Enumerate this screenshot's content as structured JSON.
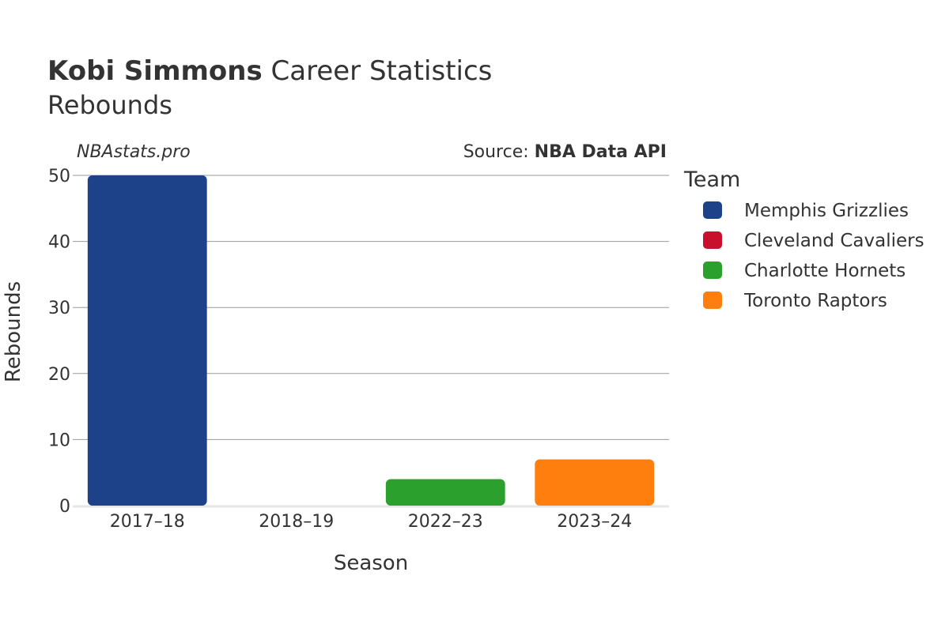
{
  "chart_data": {
    "type": "bar",
    "title_bold": "Kobi Simmons",
    "title_rest": " Career Statistics",
    "subtitle": "Rebounds",
    "watermark": "NBAstats.pro",
    "source_prefix": "Source: ",
    "source_name": "NBA Data API",
    "xlabel": "Season",
    "ylabel": "Rebounds",
    "ylim": [
      0,
      50
    ],
    "yticks": [
      0,
      10,
      20,
      30,
      40,
      50
    ],
    "grid": true,
    "legend_title": "Team",
    "legend_position": "right",
    "categories": [
      "2017–18",
      "2018–19",
      "2022–23",
      "2023–24"
    ],
    "bars": [
      {
        "season": "2017–18",
        "team": "Memphis Grizzlies",
        "value": 50
      },
      {
        "season": "2018–19",
        "team": "Cleveland Cavaliers",
        "value": 0
      },
      {
        "season": "2022–23",
        "team": "Charlotte Hornets",
        "value": 4
      },
      {
        "season": "2023–24",
        "team": "Toronto Raptors",
        "value": 7
      }
    ],
    "series": [
      {
        "name": "Memphis Grizzlies",
        "color": "#1d428a"
      },
      {
        "name": "Cleveland Cavaliers",
        "color": "#c8102e"
      },
      {
        "name": "Charlotte Hornets",
        "color": "#2ca02c"
      },
      {
        "name": "Toronto Raptors",
        "color": "#ff7f0e"
      }
    ]
  }
}
